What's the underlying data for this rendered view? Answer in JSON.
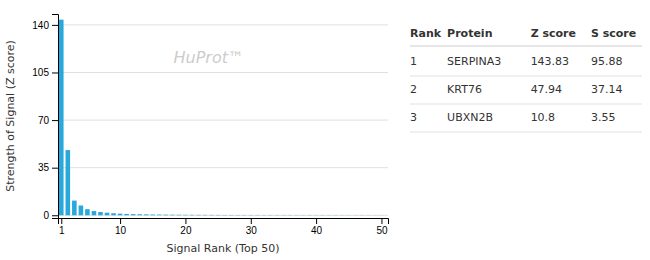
{
  "chart_data": {
    "type": "bar",
    "xlabel": "Signal Rank (Top 50)",
    "ylabel": "Strength of Signal (Z score)",
    "annotation": "HuProt™",
    "color": "#29a8dc",
    "grid": true,
    "x": [
      1,
      2,
      3,
      4,
      5,
      6,
      7,
      8,
      9,
      10,
      11,
      12,
      13,
      14,
      15,
      16,
      17,
      18,
      19,
      20,
      21,
      22,
      23,
      24,
      25,
      26,
      27,
      28,
      29,
      30,
      31,
      32,
      33,
      34,
      35,
      36,
      37,
      38,
      39,
      40,
      41,
      42,
      43,
      44,
      45,
      46,
      47,
      48,
      49,
      50
    ],
    "values": [
      143.83,
      47.94,
      10.8,
      7.2,
      4.5,
      3.1,
      2.4,
      1.9,
      1.5,
      1.2,
      1.0,
      0.85,
      0.75,
      0.65,
      0.55,
      0.5,
      0.45,
      0.42,
      0.38,
      0.35,
      0.32,
      0.3,
      0.28,
      0.26,
      0.24,
      0.22,
      0.21,
      0.2,
      0.19,
      0.18,
      0.17,
      0.16,
      0.155,
      0.15,
      0.145,
      0.14,
      0.135,
      0.13,
      0.125,
      0.12,
      0.115,
      0.11,
      0.105,
      0.1,
      0.095,
      0.09,
      0.085,
      0.08,
      0.075,
      0.07
    ],
    "xlim": [
      0.5,
      51
    ],
    "xticks": [
      1,
      10,
      20,
      30,
      40,
      50
    ],
    "ylim": [
      -2,
      148
    ],
    "yticks": [
      0,
      35,
      70,
      105,
      140
    ],
    "table_header": [
      "Rank",
      "Protein",
      "Z score",
      "S score"
    ],
    "table_rows": [
      [
        "1",
        "SERPINA3",
        "143.83",
        "95.88"
      ],
      [
        "2",
        "KRT76",
        "47.94",
        "37.14"
      ],
      [
        "3",
        "UBXN2B",
        "10.8",
        "3.55"
      ]
    ]
  }
}
